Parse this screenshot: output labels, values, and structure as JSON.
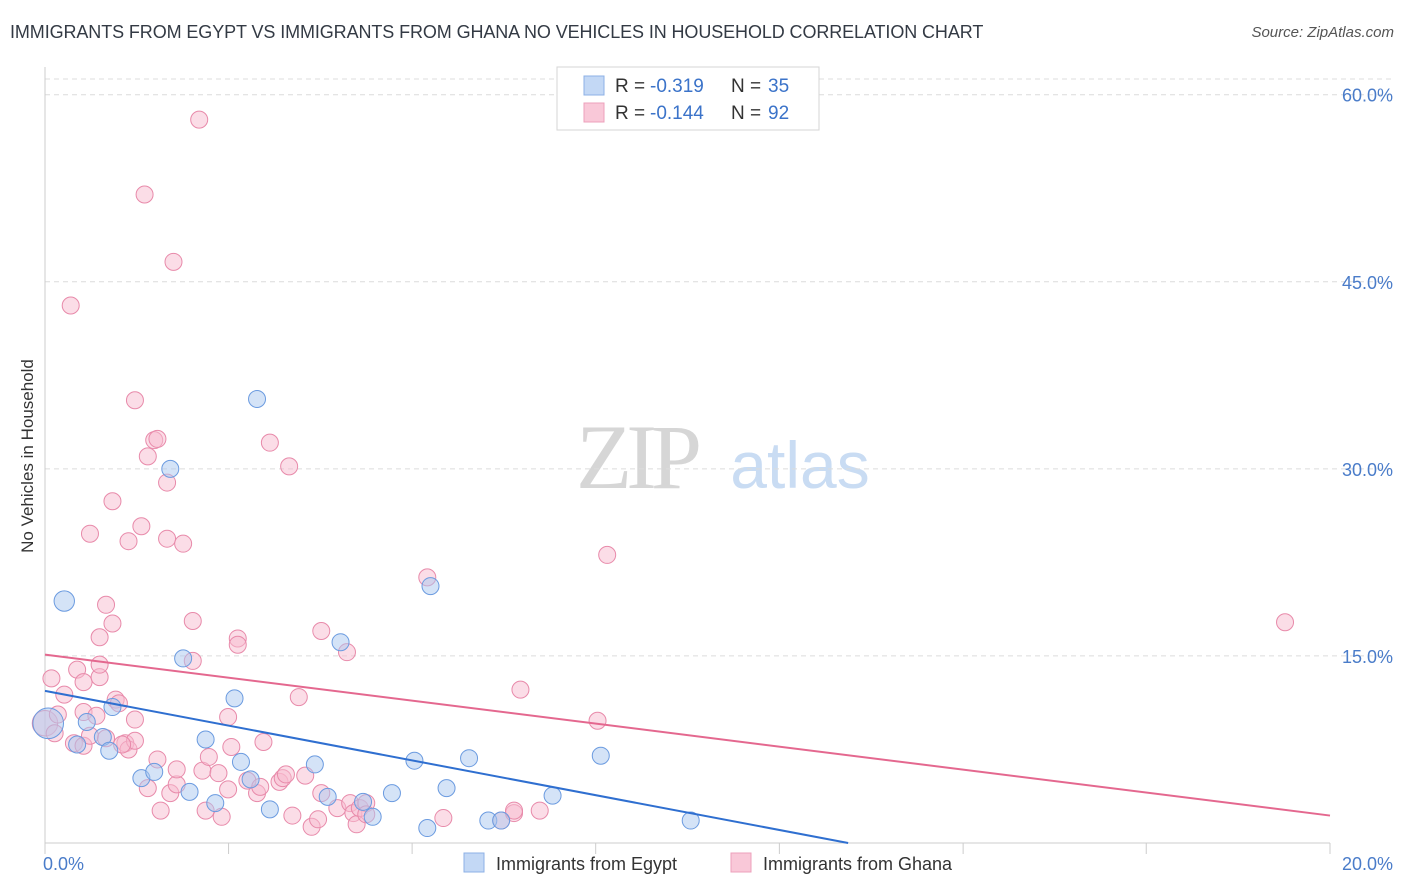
{
  "header": {
    "title": "IMMIGRANTS FROM EGYPT VS IMMIGRANTS FROM GHANA NO VEHICLES IN HOUSEHOLD CORRELATION CHART",
    "source": "Source: ZipAtlas.com"
  },
  "watermark": {
    "zip": "ZIP",
    "atlas": "atlas"
  },
  "colors": {
    "egypt_fill": "#a9c8f0",
    "egypt_stroke": "#6b9be0",
    "egypt_line": "#2f6fd0",
    "ghana_fill": "#f7bcd0",
    "ghana_stroke": "#e88aaa",
    "ghana_line": "#e4688f",
    "tick_text": "#4a7cc9",
    "grid": "#dcdcdc"
  },
  "legend": {
    "r_label": "R =",
    "n_label": "N =",
    "rows": [
      {
        "r": "-0.319",
        "n": "35"
      },
      {
        "r": "-0.144",
        "n": "92"
      }
    ]
  },
  "chart_data": {
    "type": "scatter",
    "title": "IMMIGRANTS FROM EGYPT VS IMMIGRANTS FROM GHANA NO VEHICLES IN HOUSEHOLD CORRELATION CHART",
    "xlabel": "",
    "ylabel": "No Vehicles in Household",
    "xlim": [
      0,
      20
    ],
    "ylim": [
      0,
      61.5
    ],
    "x_tick_labels": [
      "0.0%",
      "20.0%"
    ],
    "y_ticks": [
      15,
      30,
      45,
      60
    ],
    "y_tick_labels": [
      "15.0%",
      "30.0%",
      "45.0%",
      "60.0%"
    ],
    "grid": true,
    "series": [
      {
        "name": "Immigrants from Egypt",
        "r": -0.319,
        "n": 35,
        "trend": {
          "x0": 0,
          "y0": 12.2,
          "x1": 12.5,
          "y1": 0
        },
        "points": [
          [
            0.05,
            9.6,
            1.8
          ],
          [
            0.3,
            19.4,
            1.2
          ],
          [
            0.5,
            7.9,
            1
          ],
          [
            0.65,
            9.7,
            1
          ],
          [
            0.9,
            8.5,
            1
          ],
          [
            1.05,
            10.9,
            1
          ],
          [
            1.0,
            7.4,
            1
          ],
          [
            1.5,
            5.2,
            1
          ],
          [
            1.7,
            5.7,
            1
          ],
          [
            1.95,
            30.0,
            1
          ],
          [
            2.15,
            14.8,
            1
          ],
          [
            2.25,
            4.1,
            1
          ],
          [
            2.5,
            8.3,
            1
          ],
          [
            2.65,
            3.2,
            1
          ],
          [
            2.95,
            11.6,
            1
          ],
          [
            3.05,
            6.5,
            1
          ],
          [
            3.2,
            5.1,
            1
          ],
          [
            3.3,
            35.6,
            1
          ],
          [
            3.5,
            2.7,
            1
          ],
          [
            4.2,
            6.3,
            1
          ],
          [
            4.4,
            3.7,
            1
          ],
          [
            4.6,
            16.1,
            1
          ],
          [
            4.95,
            3.3,
            1
          ],
          [
            5.1,
            2.1,
            1
          ],
          [
            5.4,
            4.0,
            1
          ],
          [
            5.75,
            6.6,
            1
          ],
          [
            5.95,
            1.2,
            1
          ],
          [
            6.0,
            20.6,
            1
          ],
          [
            6.25,
            4.4,
            1
          ],
          [
            6.6,
            6.8,
            1
          ],
          [
            6.9,
            1.8,
            1
          ],
          [
            7.1,
            1.8,
            1
          ],
          [
            7.9,
            3.8,
            1
          ],
          [
            8.65,
            7.0,
            1
          ],
          [
            10.05,
            1.8,
            1
          ]
        ]
      },
      {
        "name": "Immigrants from Ghana",
        "r": -0.144,
        "n": 92,
        "trend": {
          "x0": 0,
          "y0": 15.1,
          "x1": 20,
          "y1": 2.2
        },
        "points": [
          [
            0.0,
            9.6,
            1.5
          ],
          [
            0.1,
            13.2,
            1
          ],
          [
            0.2,
            10.3,
            1
          ],
          [
            0.3,
            11.9,
            1
          ],
          [
            0.4,
            43.1,
            1
          ],
          [
            0.45,
            8.0,
            1
          ],
          [
            0.5,
            13.9,
            1
          ],
          [
            0.6,
            7.8,
            1
          ],
          [
            0.6,
            10.5,
            1
          ],
          [
            0.6,
            12.9,
            1
          ],
          [
            0.7,
            8.6,
            1
          ],
          [
            0.7,
            24.8,
            1
          ],
          [
            0.8,
            10.2,
            1
          ],
          [
            0.85,
            13.3,
            1
          ],
          [
            0.85,
            14.3,
            1
          ],
          [
            0.85,
            16.5,
            1
          ],
          [
            0.95,
            8.4,
            1
          ],
          [
            0.95,
            19.1,
            1
          ],
          [
            1.05,
            27.4,
            1
          ],
          [
            1.05,
            17.6,
            1
          ],
          [
            1.1,
            11.5,
            1
          ],
          [
            1.15,
            11.2,
            1
          ],
          [
            1.25,
            8.0,
            1
          ],
          [
            1.3,
            24.2,
            1
          ],
          [
            1.3,
            7.5,
            1
          ],
          [
            1.4,
            8.2,
            1
          ],
          [
            1.4,
            9.9,
            1
          ],
          [
            1.4,
            35.5,
            1
          ],
          [
            1.5,
            25.4,
            1
          ],
          [
            1.55,
            52.0,
            1
          ],
          [
            1.6,
            31.0,
            1
          ],
          [
            1.6,
            4.4,
            1
          ],
          [
            1.7,
            32.3,
            1
          ],
          [
            1.75,
            32.4,
            1
          ],
          [
            1.75,
            6.7,
            1
          ],
          [
            1.8,
            2.6,
            1
          ],
          [
            1.9,
            28.9,
            1
          ],
          [
            1.9,
            24.4,
            1
          ],
          [
            1.95,
            4.0,
            1
          ],
          [
            2.0,
            46.6,
            1
          ],
          [
            2.05,
            4.7,
            1
          ],
          [
            2.05,
            5.9,
            1
          ],
          [
            2.15,
            24.0,
            1
          ],
          [
            2.3,
            14.6,
            1
          ],
          [
            2.3,
            17.8,
            1
          ],
          [
            2.4,
            58.0,
            1
          ],
          [
            2.45,
            5.8,
            1
          ],
          [
            2.5,
            2.6,
            1
          ],
          [
            2.55,
            6.9,
            1
          ],
          [
            2.7,
            5.6,
            1
          ],
          [
            2.75,
            2.1,
            1
          ],
          [
            2.85,
            4.3,
            1
          ],
          [
            2.85,
            10.1,
            1
          ],
          [
            2.9,
            7.7,
            1
          ],
          [
            3.0,
            16.4,
            1
          ],
          [
            3.0,
            15.9,
            1
          ],
          [
            3.15,
            5.0,
            1
          ],
          [
            3.3,
            4.0,
            1
          ],
          [
            3.35,
            4.5,
            1
          ],
          [
            3.4,
            8.1,
            1
          ],
          [
            3.5,
            32.1,
            1
          ],
          [
            3.65,
            4.9,
            1
          ],
          [
            3.7,
            5.2,
            1
          ],
          [
            3.75,
            5.5,
            1
          ],
          [
            3.8,
            30.2,
            1
          ],
          [
            3.85,
            2.2,
            1
          ],
          [
            3.95,
            11.7,
            1
          ],
          [
            4.05,
            5.4,
            1
          ],
          [
            4.15,
            1.3,
            1
          ],
          [
            4.25,
            1.9,
            1
          ],
          [
            4.3,
            4.0,
            1
          ],
          [
            4.3,
            17.0,
            1
          ],
          [
            4.55,
            2.8,
            1
          ],
          [
            4.7,
            15.3,
            1
          ],
          [
            4.75,
            3.2,
            1
          ],
          [
            4.8,
            2.4,
            1
          ],
          [
            4.85,
            1.5,
            1
          ],
          [
            4.9,
            2.8,
            1
          ],
          [
            5.0,
            3.2,
            1
          ],
          [
            5.0,
            2.3,
            1
          ],
          [
            5.95,
            21.3,
            1
          ],
          [
            6.2,
            2.0,
            1
          ],
          [
            7.1,
            1.8,
            1
          ],
          [
            7.3,
            2.4,
            1
          ],
          [
            7.3,
            2.6,
            1
          ],
          [
            7.4,
            12.3,
            1
          ],
          [
            7.7,
            2.6,
            1
          ],
          [
            8.6,
            9.8,
            1
          ],
          [
            8.75,
            23.1,
            1
          ],
          [
            19.3,
            17.7,
            1
          ],
          [
            0.15,
            8.8,
            1
          ],
          [
            1.2,
            7.9,
            1
          ]
        ]
      }
    ],
    "legend_position": "top-center / bottom"
  },
  "bottom_legend": [
    {
      "label": "Immigrants from Egypt"
    },
    {
      "label": "Immigrants from Ghana"
    }
  ]
}
